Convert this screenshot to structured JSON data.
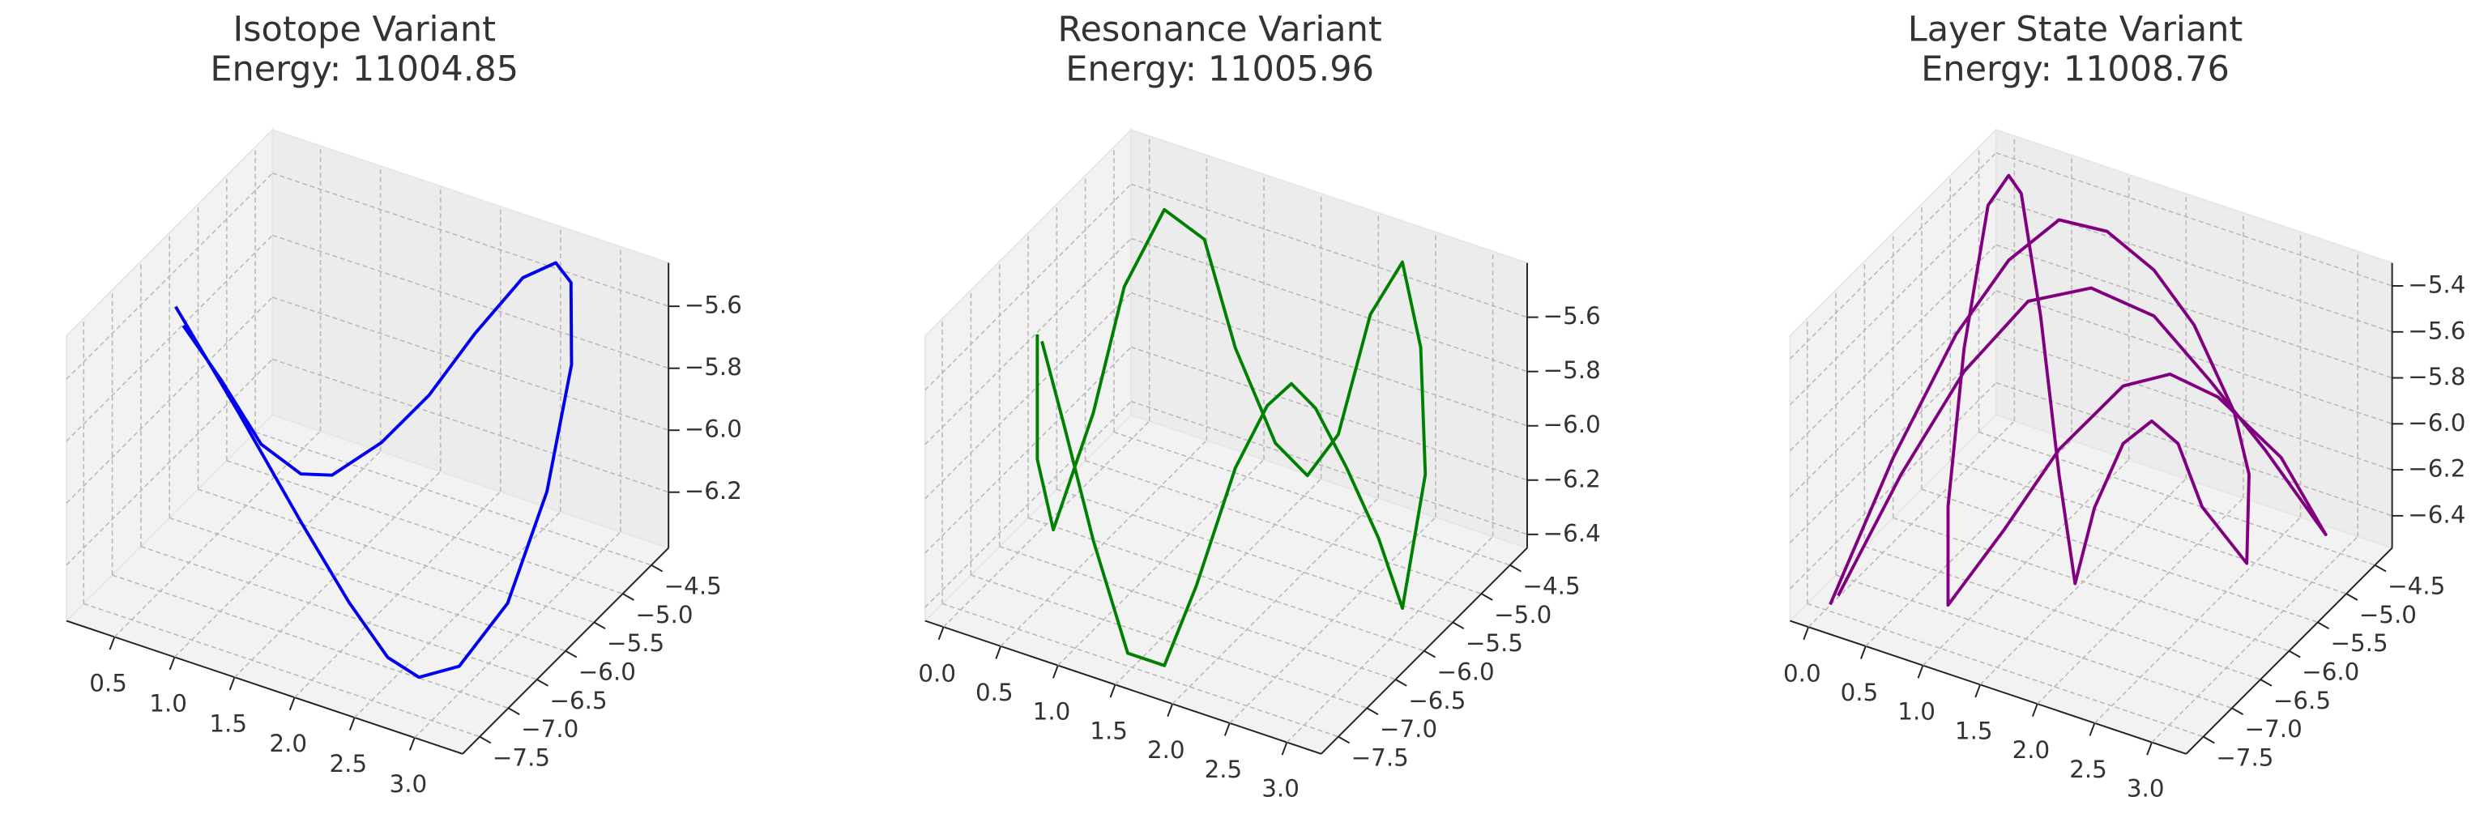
{
  "chart_data": [
    {
      "type": "line3d",
      "title": "Isotope Variant",
      "subtitle": "Energy: 11004.85",
      "color": "#0000ee",
      "grid": true,
      "x": [
        0.27,
        0.76,
        1.26,
        1.75,
        2.41,
        2.67,
        2.91,
        3.07,
        3.14,
        3.14,
        2.74,
        2.58,
        2.41,
        2.15,
        1.92,
        1.59,
        1.35,
        1.09,
        0.83,
        0.56,
        0.3
      ],
      "y": [
        -6.25,
        -6.18,
        -6.13,
        -6.32,
        -7.03,
        -7.03,
        -6.83,
        -6.32,
        -5.78,
        -5.35,
        -4.52,
        -4.45,
        -4.67,
        -4.96,
        -5.28,
        -5.42,
        -5.78,
        -5.78,
        -5.93,
        -6.07,
        -6.18
      ],
      "z": [
        -5.63,
        -5.92,
        -6.22,
        -6.38,
        -6.34,
        -6.37,
        -6.34,
        -6.21,
        -5.94,
        -5.61,
        -5.55,
        -5.52,
        -5.55,
        -5.71,
        -5.88,
        -6.05,
        -6.12,
        -6.15,
        -6.06,
        -5.86,
        -5.7
      ],
      "xlim": [
        0.1,
        3.4
      ],
      "ylim": [
        -7.8,
        -4.2
      ],
      "zlim": [
        -6.38,
        -5.46
      ],
      "xticks": [
        0.5,
        {
          "value": 1,
          "label": "1.0"
        },
        1.5,
        {
          "value": 2,
          "label": "2.0"
        },
        2.5,
        {
          "value": 3,
          "label": "3.0"
        }
      ],
      "yticks": [
        {
          "value": -7.5,
          "label": "−7.5"
        },
        {
          "value": -7,
          "label": "−7.0"
        },
        {
          "value": -6.5,
          "label": "−6.5"
        },
        {
          "value": -6,
          "label": "−6.0"
        },
        {
          "value": -5.5,
          "label": "−5.5"
        },
        {
          "value": -5,
          "label": "−5.0"
        },
        {
          "value": -4.5,
          "label": "−4.5"
        }
      ],
      "zticks": [
        {
          "value": -6.2,
          "label": "−6.2"
        },
        {
          "value": -6,
          "label": "−6.0"
        },
        {
          "value": -5.8,
          "label": "−5.8"
        },
        {
          "value": -5.6,
          "label": "−5.6"
        }
      ]
    },
    {
      "type": "line3d",
      "title": "Resonance Variant",
      "subtitle": "Energy: 11005.96",
      "color": "#008000",
      "grid": true,
      "x": [
        0.28,
        0.28,
        0.42,
        0.59,
        0.59,
        0.49,
        0.84,
        1.29,
        1.82,
        2.1,
        2.37,
        2.47,
        2.39,
        2.82,
        3.13,
        3.11,
        2.9,
        2.62,
        2.35,
        2.14,
        1.93,
        1.65,
        1.49,
        1.75,
        1.43,
        0.95,
        0.61,
        0.32
      ],
      "y": [
        -6.72,
        -6.72,
        -6.72,
        -6.36,
        -5.82,
        -4.92,
        -4.92,
        -5.28,
        -5.64,
        -5.64,
        -5.64,
        -5.28,
        -4.56,
        -5.1,
        -5.64,
        -6.0,
        -6.0,
        -6.0,
        -6.0,
        -6.0,
        -6.0,
        -6.0,
        -6.36,
        -7.44,
        -7.44,
        -7.08,
        -6.9,
        -6.72
      ],
      "z": [
        -5.56,
        -6.02,
        -6.26,
        -5.88,
        -5.53,
        -5.45,
        -5.51,
        -5.77,
        -5.97,
        -6.05,
        -5.86,
        -5.48,
        -5.45,
        -5.59,
        -5.9,
        -6.32,
        -6.09,
        -5.87,
        -5.69,
        -5.63,
        -5.74,
        -6.01,
        -6.39,
        -6.42,
        -6.42,
        -6.15,
        -5.82,
        -5.58
      ],
      "xlim": [
        -0.16,
        3.3
      ],
      "ylim": [
        -7.8,
        -4.2
      ],
      "zlim": [
        -6.45,
        -5.4
      ],
      "xticks": [
        {
          "value": 0,
          "label": "0.0"
        },
        0.5,
        {
          "value": 1,
          "label": "1.0"
        },
        1.5,
        {
          "value": 2,
          "label": "2.0"
        },
        2.5,
        {
          "value": 3,
          "label": "3.0"
        }
      ],
      "yticks": [
        {
          "value": -7.5,
          "label": "−7.5"
        },
        {
          "value": -7,
          "label": "−7.0"
        },
        {
          "value": -6.5,
          "label": "−6.5"
        },
        {
          "value": -6,
          "label": "−6.0"
        },
        {
          "value": -5.5,
          "label": "−5.5"
        },
        {
          "value": -5,
          "label": "−5.0"
        },
        {
          "value": -4.5,
          "label": "−4.5"
        }
      ],
      "zticks": [
        {
          "value": -6.4,
          "label": "−6.4"
        },
        {
          "value": -6.2,
          "label": "−6.2"
        },
        {
          "value": -6,
          "label": "−6.0"
        },
        {
          "value": -5.8,
          "label": "−5.8"
        },
        {
          "value": -5.6,
          "label": "−5.6"
        }
      ]
    },
    {
      "type": "line3d",
      "title": "Layer State Variant",
      "subtitle": "Energy: 11008.76",
      "color": "#800080",
      "grid": true,
      "x": [
        0.01,
        0.2,
        0.39,
        0.67,
        0.75,
        1.17,
        1.58,
        1.93,
        2.28,
        2.41,
        2.48,
        2.18,
        1.97,
        1.74,
        1.49,
        1.24,
        1.52,
        1.29,
        0.95,
        0.24,
        0.04,
        -0.05,
        0.28,
        0.5,
        0.86,
        1.17,
        1.47,
        1.85,
        2.26,
        2.68,
        3.05,
        3.26,
        2.73,
        2.25,
        1.76,
        1.21,
        0.84,
        0.64,
        0.45,
        0.17
      ],
      "y": [
        -7.44,
        -6.72,
        -6.0,
        -5.64,
        -4.92,
        -4.92,
        -4.92,
        -4.92,
        -4.92,
        -4.92,
        -5.1,
        -5.28,
        -5.28,
        -5.28,
        -5.28,
        -5.28,
        -6.18,
        -6.0,
        -5.64,
        -4.56,
        -4.38,
        -4.56,
        -5.64,
        -6.36,
        -7.08,
        -6.72,
        -6.36,
        -6.0,
        -6.0,
        -6.0,
        -5.64,
        -5.28,
        -5.28,
        -5.28,
        -5.28,
        -5.28,
        -5.64,
        -6.36,
        -7.08,
        -7.62
      ],
      "z": [
        -6.53,
        -6.04,
        -5.65,
        -5.37,
        -5.36,
        -5.34,
        -5.44,
        -5.62,
        -5.94,
        -6.19,
        -6.52,
        -6.28,
        -6.04,
        -5.98,
        -6.12,
        -6.44,
        -6.5,
        -6.11,
        -5.57,
        -5.42,
        -5.42,
        -5.52,
        -5.82,
        -6.29,
        -6.48,
        -6.19,
        -5.88,
        -5.63,
        -5.51,
        -5.54,
        -5.83,
        -6.22,
        -5.94,
        -5.72,
        -5.52,
        -5.49,
        -5.52,
        -5.68,
        -5.98,
        -6.42
      ],
      "xlim": [
        -0.16,
        3.3
      ],
      "ylim": [
        -7.8,
        -4.2
      ],
      "zlim": [
        -6.54,
        -5.3
      ],
      "xticks": [
        {
          "value": 0,
          "label": "0.0"
        },
        0.5,
        {
          "value": 1,
          "label": "1.0"
        },
        1.5,
        {
          "value": 2,
          "label": "2.0"
        },
        2.5,
        {
          "value": 3,
          "label": "3.0"
        }
      ],
      "yticks": [
        {
          "value": -7.5,
          "label": "−7.5"
        },
        {
          "value": -7,
          "label": "−7.0"
        },
        {
          "value": -6.5,
          "label": "−6.5"
        },
        {
          "value": -6,
          "label": "−6.0"
        },
        {
          "value": -5.5,
          "label": "−5.5"
        },
        {
          "value": -5,
          "label": "−5.0"
        },
        {
          "value": -4.5,
          "label": "−4.5"
        }
      ],
      "zticks": [
        {
          "value": -6.4,
          "label": "−6.4"
        },
        {
          "value": -6.2,
          "label": "−6.2"
        },
        {
          "value": -6,
          "label": "−6.0"
        },
        {
          "value": -5.8,
          "label": "−5.8"
        },
        {
          "value": -5.6,
          "label": "−5.6"
        },
        {
          "value": -5.4,
          "label": "−5.4"
        }
      ]
    }
  ]
}
